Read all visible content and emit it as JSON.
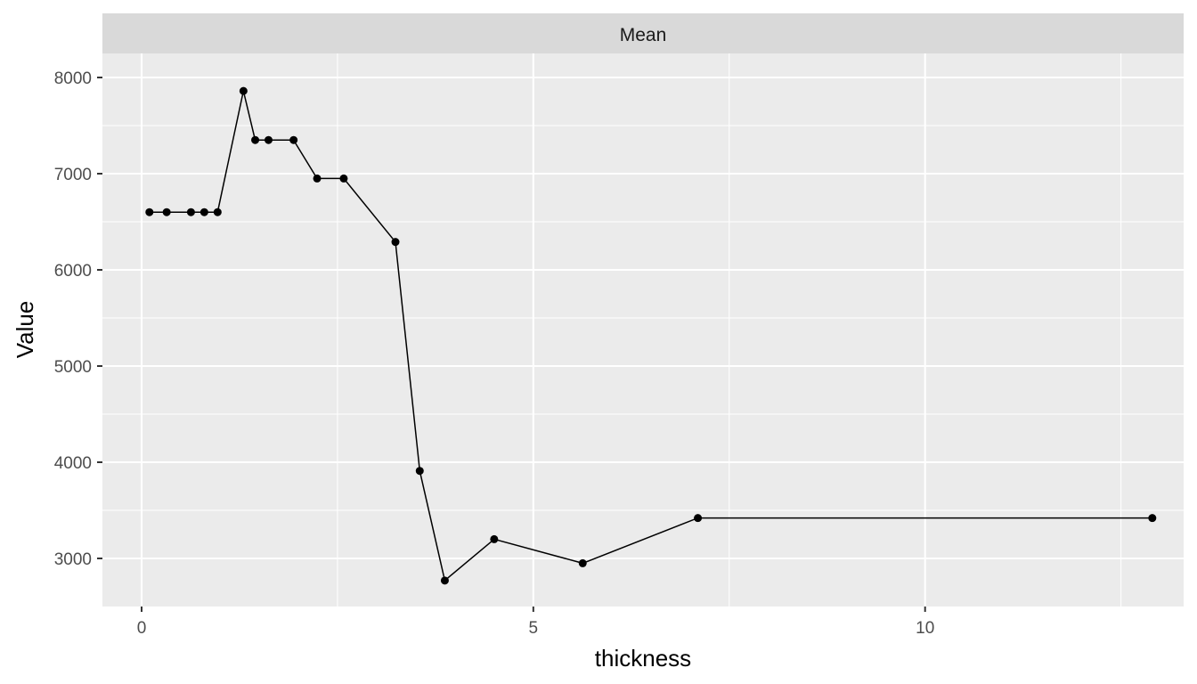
{
  "chart_data": {
    "type": "line",
    "facet_label": "Mean",
    "xlabel": "thickness",
    "ylabel": "Value",
    "xlim": [
      -0.5,
      13.3
    ],
    "ylim": [
      2500,
      8250
    ],
    "x_ticks": [
      0,
      5,
      10
    ],
    "x_tick_labels": [
      "0",
      "5",
      "10"
    ],
    "x_minor_ticks": [
      2.5,
      7.5,
      12.5
    ],
    "y_ticks": [
      3000,
      4000,
      5000,
      6000,
      7000,
      8000
    ],
    "y_tick_labels": [
      "3000",
      "4000",
      "5000",
      "6000",
      "7000",
      "8000"
    ],
    "y_minor_ticks": [
      3500,
      4500,
      5500,
      6500,
      7500
    ],
    "grid": true,
    "series": [
      {
        "x": [
          0.1,
          0.32,
          0.63,
          0.8,
          0.97,
          1.3,
          1.45,
          1.62,
          1.94,
          2.24,
          2.58,
          3.24,
          3.55,
          3.87,
          4.5,
          5.63,
          7.1,
          12.9
        ],
        "values": [
          6600,
          6600,
          6600,
          6600,
          6600,
          7860,
          7350,
          7350,
          7350,
          6950,
          6950,
          6290,
          3910,
          2770,
          3200,
          2950,
          3420,
          3420
        ]
      }
    ],
    "colors": {
      "line": "#000000",
      "panel": "#EBEBEB",
      "strip": "#D9D9D9",
      "grid": "#FFFFFF"
    }
  }
}
